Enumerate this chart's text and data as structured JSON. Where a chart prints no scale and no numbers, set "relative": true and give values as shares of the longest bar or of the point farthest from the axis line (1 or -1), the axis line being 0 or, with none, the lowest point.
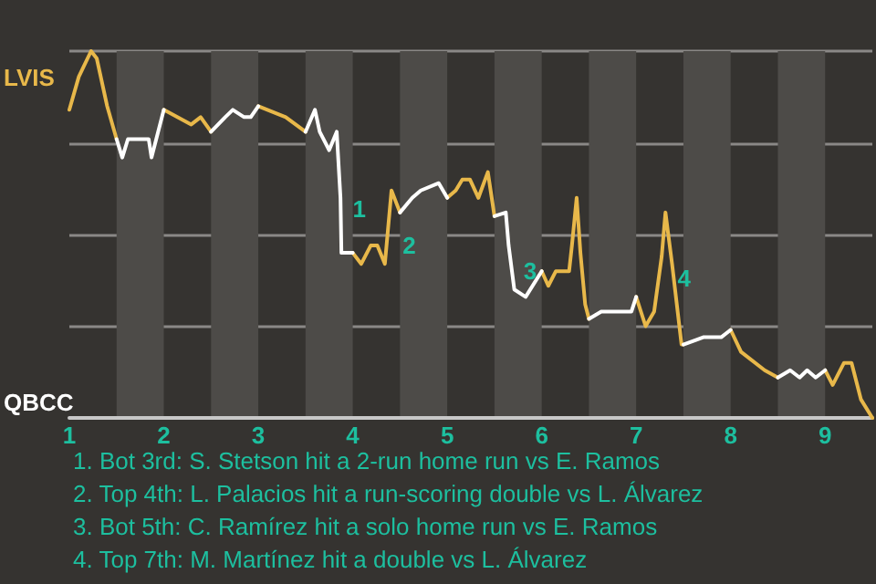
{
  "chart_data": {
    "type": "line",
    "relative": true,
    "x": [
      1.0,
      1.1,
      1.23,
      1.29,
      1.4,
      1.5,
      1.56,
      1.62,
      1.84,
      1.87,
      2.0,
      2.29,
      2.39,
      2.5,
      2.65,
      2.73,
      2.85,
      2.92,
      3.0,
      3.29,
      3.5,
      3.6,
      3.65,
      3.75,
      3.83,
      3.87,
      3.88,
      3.98,
      4.0,
      4.09,
      4.19,
      4.26,
      4.34,
      4.41,
      4.5,
      4.63,
      4.72,
      4.91,
      5.0,
      5.09,
      5.16,
      5.24,
      5.33,
      5.43,
      5.5,
      5.62,
      5.65,
      5.71,
      5.83,
      6.0,
      6.07,
      6.15,
      6.29,
      6.32,
      6.37,
      6.41,
      6.46,
      6.5,
      6.63,
      6.71,
      6.95,
      7.0,
      7.1,
      7.19,
      7.27,
      7.31,
      7.38,
      7.48,
      7.5,
      7.71,
      7.9,
      8.0,
      8.11,
      8.36,
      8.5,
      8.63,
      8.73,
      8.81,
      8.9,
      9.0,
      9.08,
      9.2,
      9.28,
      9.38,
      9.5
    ],
    "series": [
      {
        "color": "#e8b84a",
        "values": [
          0.84,
          0.93,
          1,
          0.98,
          0.85,
          0.76,
          null,
          null,
          null,
          null,
          0.84,
          0.8,
          0.82,
          0.78,
          null,
          null,
          null,
          null,
          0.85,
          0.82,
          0.78,
          null,
          null,
          null,
          null,
          null,
          null,
          null,
          0.45,
          0.42,
          0.47,
          0.47,
          0.42,
          0.62,
          0.56,
          null,
          null,
          null,
          0.6,
          0.62,
          0.65,
          0.65,
          0.6,
          0.67,
          0.55,
          null,
          null,
          null,
          null,
          0.4,
          0.36,
          0.4,
          0.4,
          0.47,
          0.6,
          0.45,
          0.31,
          0.27,
          null,
          null,
          null,
          0.33,
          0.25,
          0.29,
          0.44,
          0.56,
          0.42,
          0.2,
          0.2,
          null,
          null,
          0.24,
          0.18,
          0.13,
          0.11,
          null,
          null,
          null,
          null,
          0.13,
          0.09,
          0.15,
          0.15,
          0.05,
          0
        ]
      },
      {
        "color": "#ffffff",
        "values": [
          null,
          null,
          null,
          null,
          null,
          0.76,
          0.71,
          0.76,
          0.76,
          0.71,
          0.84,
          null,
          null,
          0.78,
          0.82,
          0.84,
          0.82,
          0.82,
          0.85,
          null,
          0.78,
          0.84,
          0.78,
          0.73,
          0.78,
          0.6,
          0.45,
          0.45,
          0.45,
          null,
          null,
          null,
          null,
          null,
          0.56,
          0.6,
          0.62,
          0.64,
          0.6,
          null,
          null,
          null,
          null,
          null,
          0.55,
          0.56,
          0.47,
          0.35,
          0.33,
          0.4,
          null,
          null,
          null,
          null,
          null,
          null,
          null,
          0.27,
          0.29,
          0.29,
          0.29,
          0.33,
          null,
          null,
          null,
          null,
          null,
          null,
          0.2,
          0.22,
          0.22,
          0.24,
          null,
          null,
          0.11,
          0.13,
          0.11,
          0.13,
          0.11,
          0.13,
          null,
          null,
          null,
          null,
          null
        ]
      }
    ],
    "xlim": [
      1,
      9.5
    ],
    "xticks": [
      1,
      2,
      3,
      4,
      5,
      6,
      7,
      8,
      9
    ],
    "grid": "y",
    "bands": [
      {
        "axis": "x",
        "from": 1.5,
        "to": 2,
        "color": "#4d4b48"
      },
      {
        "axis": "x",
        "from": 2.5,
        "to": 3,
        "color": "#4d4b48"
      },
      {
        "axis": "x",
        "from": 3.5,
        "to": 4,
        "color": "#4d4b48"
      },
      {
        "axis": "x",
        "from": 4.5,
        "to": 5,
        "color": "#4d4b48"
      },
      {
        "axis": "x",
        "from": 5.5,
        "to": 6,
        "color": "#4d4b48"
      },
      {
        "axis": "x",
        "from": 6.5,
        "to": 7,
        "color": "#4d4b48"
      },
      {
        "axis": "x",
        "from": 7.5,
        "to": 8,
        "color": "#4d4b48"
      },
      {
        "axis": "x",
        "from": 8.5,
        "to": 9,
        "color": "#4d4b48"
      }
    ],
    "annotations": [
      "LVIS",
      "QBCC",
      {
        "text": "1",
        "x": 3.94,
        "y": 0.55
      },
      {
        "text": "2",
        "x": 4.47,
        "y": 0.45
      },
      {
        "text": "3",
        "x": 5.75,
        "y": 0.38
      },
      {
        "text": "4",
        "x": 7.38,
        "y": 0.36
      },
      "1. Bot 3rd: S. Stetson hit a 2-run home run vs E. Ramos",
      "2. Top 4th: L. Palacios hit a run-scoring double vs L. Álvarez",
      "3. Bot 5th: C. Ramírez hit a solo home run vs E. Ramos",
      "4. Top 7th: M. Martínez hit a double vs L. Álvarez"
    ],
    "marker": "none",
    "line_style": "solid"
  }
}
